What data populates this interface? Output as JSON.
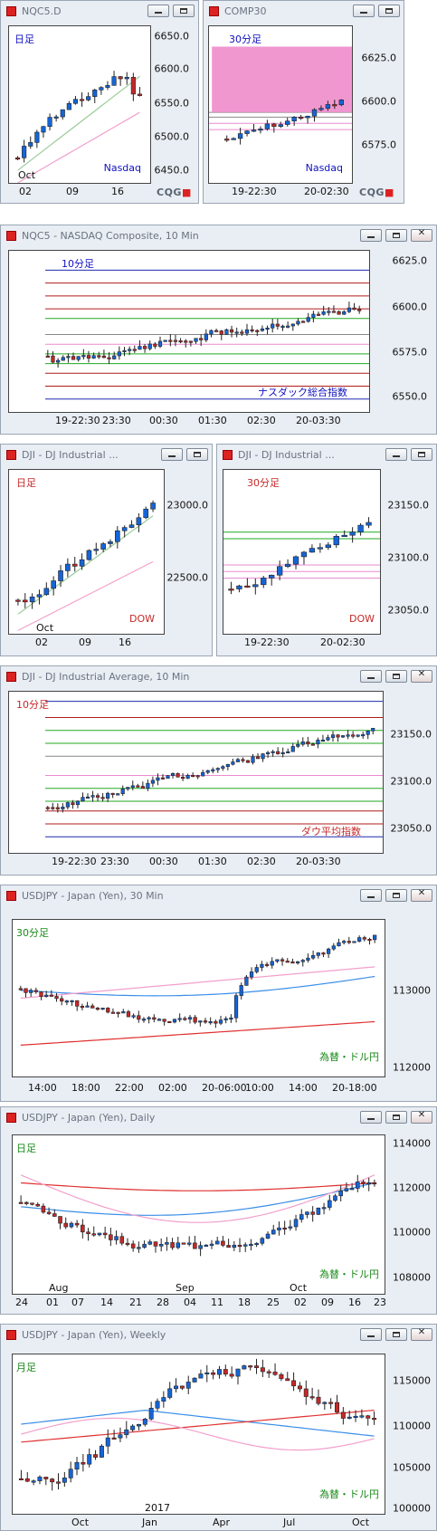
{
  "colors": {
    "up": "#1565d8",
    "down": "#c62828",
    "wick": "#222222",
    "magenta": "#e28bc8"
  },
  "panels": [
    {
      "id": "nqc5d",
      "title": "NQC5.D",
      "tf": "日足",
      "tf_color": "#1010c0",
      "name": "Nasdaq",
      "name_color": "#1010c0",
      "footer": "CQG",
      "buttons": true,
      "yticks": [
        "6650.0",
        "6600.0",
        "6550.0",
        "6500.0",
        "6450.0"
      ],
      "xticks": [
        "02",
        "09",
        "16"
      ],
      "xnote": "Oct"
    },
    {
      "id": "comp30",
      "title": "COMP30",
      "tf": "30分足",
      "tf_color": "#1010c0",
      "name": "Nasdaq",
      "name_color": "#1010c0",
      "footer": "CQG",
      "buttons": true,
      "yticks": [
        "6625.0",
        "6600.0",
        "6575.0"
      ],
      "xticks": [
        "19-22:30",
        "20-02:30"
      ]
    },
    {
      "id": "nqc5",
      "title": "NQC5 - NASDAQ Composite, 10 Min",
      "tf": "10分足",
      "tf_color": "#1010c0",
      "name": "ナスダック総合指数",
      "name_color": "#1010c0",
      "buttons": true,
      "yticks": [
        "6625.0",
        "6600.0",
        "6575.0",
        "6550.0"
      ],
      "xticks": [
        "19-22:30",
        "23:30",
        "00:30",
        "01:30",
        "02:30",
        "20-03:30"
      ]
    },
    {
      "id": "djid",
      "title": "DJI - DJ Industrial ...",
      "tf": "日足",
      "tf_color": "#c62828",
      "name": "DOW",
      "name_color": "#c62828",
      "buttons": true,
      "yticks": [
        "23000.0",
        "22500.0"
      ],
      "xticks": [
        "02",
        "09",
        "16"
      ],
      "xnote": "Oct"
    },
    {
      "id": "dji30",
      "title": "DJI - DJ Industrial ...",
      "tf": "30分足",
      "tf_color": "#c62828",
      "name": "DOW",
      "name_color": "#c62828",
      "buttons": true,
      "yticks": [
        "23150.0",
        "23100.0",
        "23050.0"
      ],
      "xticks": [
        "19-22:30",
        "20-02:30"
      ]
    },
    {
      "id": "dji10",
      "title": "DJI - DJ Industrial Average, 10 Min",
      "tf": "10分足",
      "tf_color": "#c62828",
      "name": "ダウ平均指数",
      "name_color": "#c62828",
      "buttons": true,
      "yticks": [
        "23150.0",
        "23100.0",
        "23050.0"
      ],
      "xticks": [
        "19-22:30",
        "23:30",
        "00:30",
        "01:30",
        "02:30",
        "20-03:30"
      ]
    },
    {
      "id": "usdjpy30",
      "title": "USDJPY - Japan (Yen), 30 Min",
      "tf": "30分足",
      "tf_color": "#1a8a1a",
      "name": "為替・ドル円",
      "name_color": "#1a8a1a",
      "buttons": true,
      "yticks": [
        "113000",
        "112000"
      ],
      "xticks": [
        "14:00",
        "18:00",
        "22:00",
        "02:00",
        "20-06:00",
        "10:00",
        "14:00",
        "20-18:00"
      ]
    },
    {
      "id": "usdjpyd",
      "title": "USDJPY - Japan (Yen), Daily",
      "tf": "日足",
      "tf_color": "#1a8a1a",
      "name": "為替・ドル円",
      "name_color": "#1a8a1a",
      "buttons": true,
      "yticks": [
        "114000",
        "112000",
        "110000",
        "108000"
      ],
      "xticks": [
        "24",
        "01",
        "07",
        "14",
        "21",
        "28",
        "04",
        "11",
        "18",
        "25",
        "02",
        "09",
        "16",
        "23"
      ],
      "xnotes": [
        "Aug",
        "Sep",
        "Oct"
      ]
    },
    {
      "id": "usdjpyw",
      "title": "USDJPY - Japan (Yen), Weekly",
      "tf": "月足",
      "tf_color": "#1a8a1a",
      "name": "為替・ドル円",
      "name_color": "#1a8a1a",
      "buttons": true,
      "yticks": [
        "115000",
        "110000",
        "105000",
        "100000"
      ],
      "xticks": [
        "Oct",
        "Jan",
        "Apr",
        "Jul",
        "Oct"
      ],
      "xnote": "2017"
    }
  ]
}
